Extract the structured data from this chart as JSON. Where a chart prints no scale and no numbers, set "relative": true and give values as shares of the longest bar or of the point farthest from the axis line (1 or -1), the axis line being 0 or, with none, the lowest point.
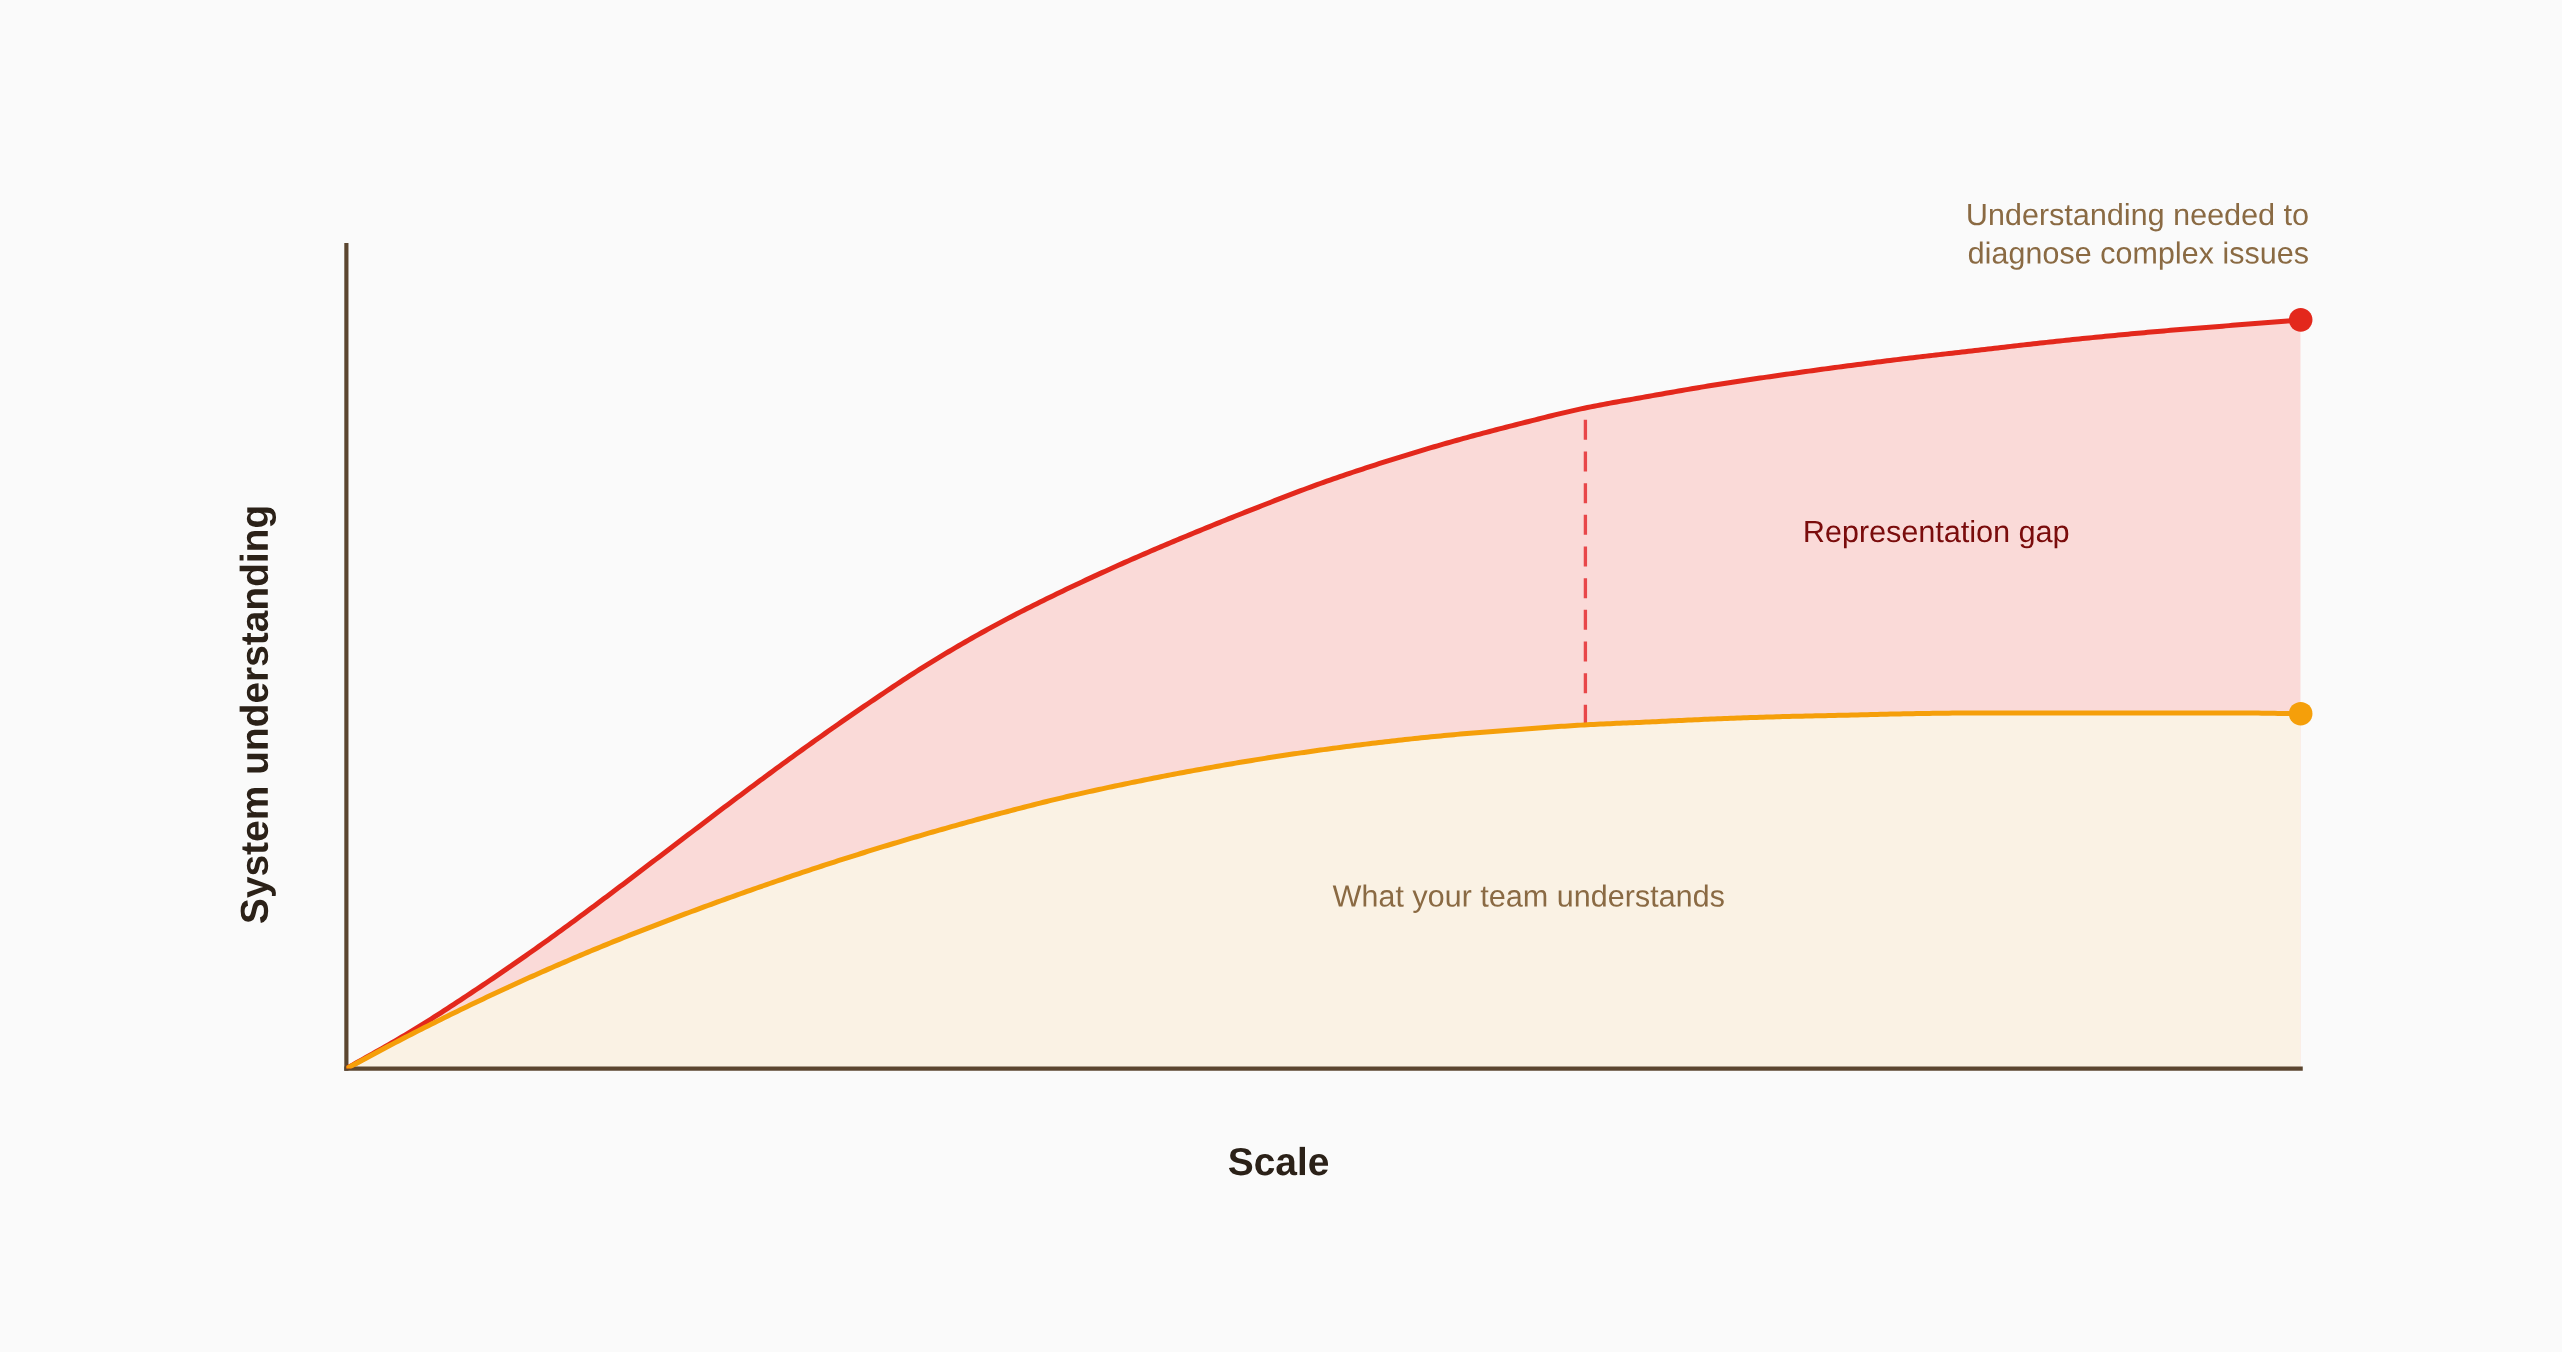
{
  "chart_data": {
    "type": "area",
    "relative": true,
    "xlabel": "Scale",
    "ylabel": "System understanding",
    "categories": [
      null,
      null,
      null,
      null,
      null,
      null,
      null,
      null,
      null,
      null,
      null,
      null,
      null,
      null,
      null,
      null,
      null,
      null,
      null,
      null,
      null,
      null,
      null,
      null,
      null,
      null,
      null,
      null,
      null,
      null,
      null
    ],
    "series": [
      {
        "name": "Understanding needed to\ndiagnose complex issues",
        "color": "#e3281c",
        "values": [
          0,
          0.05,
          0.106,
          0.166,
          0.23,
          0.296,
          0.362,
          0.426,
          0.487,
          0.544,
          0.594,
          0.638,
          0.678,
          0.715,
          0.75,
          0.783,
          0.812,
          0.838,
          0.861,
          0.882,
          0.898,
          0.913,
          0.926,
          0.938,
          0.949,
          0.959,
          0.969,
          0.978,
          0.986,
          0.993,
          1.0
        ]
      },
      {
        "name": "What your team understands",
        "color": "#f59f0a",
        "values": [
          0,
          0.046,
          0.089,
          0.129,
          0.166,
          0.2,
          0.232,
          0.262,
          0.29,
          0.316,
          0.34,
          0.362,
          0.381,
          0.398,
          0.413,
          0.426,
          0.437,
          0.446,
          0.453,
          0.459,
          0.463,
          0.467,
          0.47,
          0.472,
          0.474,
          0.475,
          0.475,
          0.475,
          0.475,
          0.475,
          0.474
        ]
      }
    ],
    "annotations": [
      "Representation gap"
    ],
    "line_style": "solid"
  }
}
